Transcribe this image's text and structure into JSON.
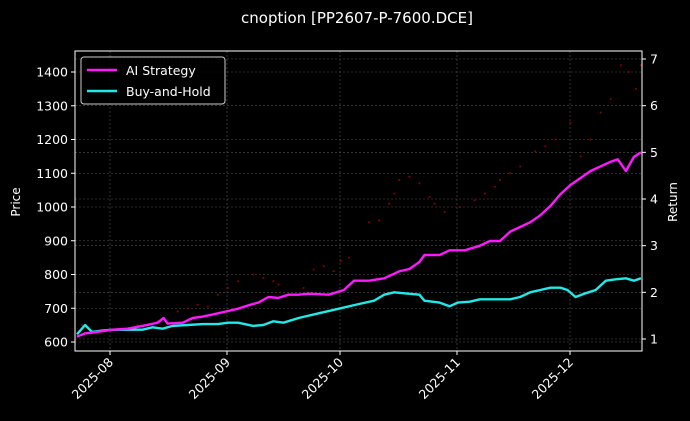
{
  "chart_data": {
    "type": "line",
    "title": "cnoption [PP2607-P-7600.DCE]",
    "xlabel": "",
    "ylabel": "Price",
    "ylabel_right": "Return",
    "x_ticks": [
      "2025-08",
      "2025-09",
      "2025-10",
      "2025-11",
      "2025-12"
    ],
    "y_ticks_left": [
      600,
      700,
      800,
      900,
      1000,
      1100,
      1200,
      1300,
      1400
    ],
    "y_ticks_right": [
      1,
      2,
      3,
      4,
      5,
      6,
      7
    ],
    "ylim_left": [
      575,
      1460
    ],
    "ylim_right": [
      0.75,
      7.15
    ],
    "grid": true,
    "legend_position": "upper left",
    "legend": [
      "AI Strategy",
      "Buy-and-Hold"
    ],
    "colors": {
      "background": "#000000",
      "ai_strategy": "#ff19ff",
      "buy_and_hold": "#22e8e8",
      "price_points": "#8b0000",
      "grid": "#555555",
      "axes": "#ffffff"
    },
    "x_dates_approx": [
      "2025-07-22",
      "2025-08-01",
      "2025-08-15",
      "2025-09-01",
      "2025-09-15",
      "2025-10-01",
      "2025-10-15",
      "2025-11-01",
      "2025-11-15",
      "2025-12-01",
      "2025-12-15",
      "2025-12-22"
    ],
    "series": [
      {
        "name": "AI Strategy",
        "axis": "right",
        "points": [
          [
            0,
            1.05
          ],
          [
            8,
            1.12
          ],
          [
            20,
            1.15
          ],
          [
            35,
            1.2
          ],
          [
            50,
            1.22
          ],
          [
            65,
            1.28
          ],
          [
            80,
            1.35
          ],
          [
            86,
            1.45
          ],
          [
            90,
            1.33
          ],
          [
            105,
            1.35
          ],
          [
            115,
            1.45
          ],
          [
            125,
            1.48
          ],
          [
            140,
            1.55
          ],
          [
            150,
            1.6
          ],
          [
            160,
            1.65
          ],
          [
            170,
            1.72
          ],
          [
            180,
            1.78
          ],
          [
            190,
            1.9
          ],
          [
            200,
            1.88
          ],
          [
            210,
            1.95
          ],
          [
            220,
            1.95
          ],
          [
            230,
            1.97
          ],
          [
            250,
            1.95
          ],
          [
            265,
            2.05
          ],
          [
            275,
            2.25
          ],
          [
            290,
            2.25
          ],
          [
            305,
            2.3
          ],
          [
            320,
            2.45
          ],
          [
            330,
            2.5
          ],
          [
            340,
            2.65
          ],
          [
            345,
            2.8
          ],
          [
            360,
            2.8
          ],
          [
            370,
            2.9
          ],
          [
            385,
            2.9
          ],
          [
            400,
            3.0
          ],
          [
            410,
            3.1
          ],
          [
            420,
            3.1
          ],
          [
            430,
            3.3
          ],
          [
            440,
            3.4
          ],
          [
            450,
            3.5
          ],
          [
            460,
            3.65
          ],
          [
            470,
            3.85
          ],
          [
            480,
            4.1
          ],
          [
            490,
            4.3
          ],
          [
            500,
            4.45
          ],
          [
            510,
            4.6
          ],
          [
            520,
            4.7
          ],
          [
            530,
            4.8
          ],
          [
            537,
            4.85
          ],
          [
            545,
            4.6
          ],
          [
            553,
            4.9
          ],
          [
            560,
            5.0
          ]
        ]
      },
      {
        "name": "Buy-and-Hold",
        "axis": "right",
        "points": [
          [
            0,
            1.1
          ],
          [
            8,
            1.3
          ],
          [
            15,
            1.15
          ],
          [
            25,
            1.18
          ],
          [
            35,
            1.2
          ],
          [
            50,
            1.2
          ],
          [
            65,
            1.2
          ],
          [
            75,
            1.25
          ],
          [
            85,
            1.22
          ],
          [
            95,
            1.28
          ],
          [
            110,
            1.3
          ],
          [
            125,
            1.32
          ],
          [
            140,
            1.32
          ],
          [
            150,
            1.35
          ],
          [
            160,
            1.35
          ],
          [
            175,
            1.28
          ],
          [
            185,
            1.3
          ],
          [
            195,
            1.38
          ],
          [
            205,
            1.35
          ],
          [
            220,
            1.45
          ],
          [
            240,
            1.55
          ],
          [
            260,
            1.65
          ],
          [
            280,
            1.75
          ],
          [
            295,
            1.82
          ],
          [
            305,
            1.95
          ],
          [
            315,
            2.0
          ],
          [
            325,
            1.98
          ],
          [
            340,
            1.95
          ],
          [
            345,
            1.82
          ],
          [
            360,
            1.78
          ],
          [
            370,
            1.7
          ],
          [
            378,
            1.78
          ],
          [
            390,
            1.8
          ],
          [
            400,
            1.85
          ],
          [
            410,
            1.85
          ],
          [
            420,
            1.85
          ],
          [
            430,
            1.85
          ],
          [
            440,
            1.9
          ],
          [
            450,
            2.0
          ],
          [
            460,
            2.05
          ],
          [
            470,
            2.1
          ],
          [
            480,
            2.1
          ],
          [
            487,
            2.05
          ],
          [
            495,
            1.9
          ],
          [
            505,
            1.98
          ],
          [
            515,
            2.05
          ],
          [
            525,
            2.25
          ],
          [
            535,
            2.28
          ],
          [
            545,
            2.3
          ],
          [
            553,
            2.25
          ],
          [
            560,
            2.3
          ]
        ]
      },
      {
        "name": "Price",
        "axis": "left",
        "style": "scatter",
        "points": [
          [
            5,
            650
          ],
          [
            20,
            630
          ],
          [
            40,
            640
          ],
          [
            60,
            650
          ],
          [
            80,
            660
          ],
          [
            100,
            690
          ],
          [
            110,
            700
          ],
          [
            120,
            710
          ],
          [
            130,
            705
          ],
          [
            140,
            740
          ],
          [
            150,
            760
          ],
          [
            160,
            780
          ],
          [
            175,
            800
          ],
          [
            185,
            790
          ],
          [
            195,
            780
          ],
          [
            200,
            770
          ],
          [
            210,
            740
          ],
          [
            225,
            760
          ],
          [
            235,
            815
          ],
          [
            245,
            825
          ],
          [
            255,
            810
          ],
          [
            262,
            840
          ],
          [
            270,
            850
          ],
          [
            290,
            955
          ],
          [
            300,
            960
          ],
          [
            310,
            1010
          ],
          [
            315,
            1040
          ],
          [
            320,
            1080
          ],
          [
            330,
            1090
          ],
          [
            340,
            1070
          ],
          [
            350,
            1030
          ],
          [
            355,
            1010
          ],
          [
            365,
            985
          ],
          [
            380,
            1000
          ],
          [
            395,
            1020
          ],
          [
            405,
            1040
          ],
          [
            415,
            1060
          ],
          [
            420,
            1080
          ],
          [
            430,
            1100
          ],
          [
            440,
            1120
          ],
          [
            455,
            1165
          ],
          [
            465,
            1180
          ],
          [
            475,
            1200
          ],
          [
            490,
            1250
          ],
          [
            500,
            1150
          ],
          [
            510,
            1200
          ],
          [
            520,
            1280
          ],
          [
            530,
            1320
          ],
          [
            540,
            1420
          ],
          [
            548,
            1400
          ],
          [
            555,
            1350
          ],
          [
            560,
            1420
          ]
        ]
      }
    ]
  }
}
